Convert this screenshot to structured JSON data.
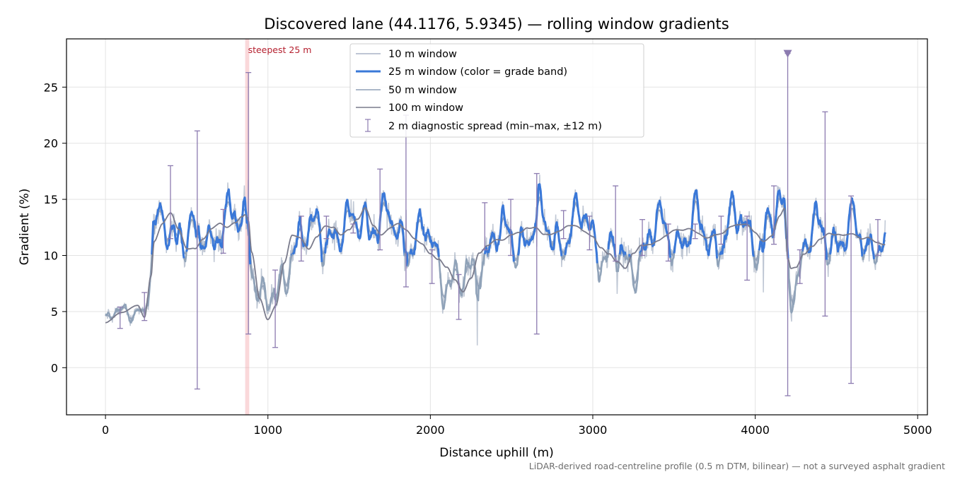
{
  "chart_data": {
    "type": "line",
    "title": "Discovered lane (44.1176, 5.9345) — rolling window gradients",
    "xlabel": "Distance uphill (m)",
    "ylabel": "Gradient (%)",
    "xlim": [
      -240,
      5060
    ],
    "ylim": [
      -4.2,
      29.3
    ],
    "xticks": [
      0,
      1000,
      2000,
      3000,
      4000,
      5000
    ],
    "yticks": [
      0,
      5,
      10,
      15,
      20,
      25
    ],
    "grid": true,
    "legend_position": "top-center",
    "footnote": "LiDAR-derived road-centreline profile (0.5 m DTM, bilinear) — not a surveyed asphalt gradient",
    "colors": {
      "w10": "#aab4c6",
      "w25": "#3a78d8",
      "w50": "#8f9fb6",
      "w100": "#7a7b8c",
      "spread": "#8c7bb0",
      "highlight": "#f4a9ad",
      "annotation": "#b5202f"
    },
    "highlight": {
      "x_start": 860,
      "x_end": 885,
      "label": "steepest 25 m"
    },
    "marker": {
      "x": 4200,
      "y": 28,
      "shape": "triangle-down"
    },
    "series": [
      {
        "key": "w10",
        "name": "10 m window"
      },
      {
        "key": "w25",
        "name": "25 m window (color = grade band)"
      },
      {
        "key": "w50",
        "name": "50 m window"
      },
      {
        "key": "w100",
        "name": "100 m window"
      },
      {
        "key": "spread",
        "name": "2 m diagnostic spread (min–max, ±12 m)"
      }
    ],
    "anchors": {
      "x": [
        0,
        100,
        200,
        240,
        280,
        300,
        350,
        400,
        450,
        500,
        550,
        600,
        650,
        700,
        750,
        800,
        840,
        860,
        880,
        900,
        950,
        1000,
        1050,
        1100,
        1150,
        1200,
        1250,
        1300,
        1350,
        1400,
        1450,
        1500,
        1550,
        1600,
        1650,
        1700,
        1750,
        1800,
        1850,
        1900,
        1950,
        2000,
        2050,
        2100,
        2150,
        2200,
        2250,
        2300,
        2350,
        2400,
        2450,
        2500,
        2550,
        2600,
        2650,
        2700,
        2750,
        2800,
        2850,
        2900,
        2950,
        3000,
        3050,
        3100,
        3150,
        3200,
        3250,
        3300,
        3350,
        3400,
        3450,
        3500,
        3550,
        3600,
        3650,
        3700,
        3750,
        3800,
        3850,
        3900,
        3950,
        4000,
        4050,
        4100,
        4150,
        4180,
        4200,
        4220,
        4250,
        4300,
        4350,
        4400,
        4450,
        4500,
        4550,
        4600,
        4650,
        4700,
        4750,
        4800
      ],
      "w100": [
        4.0,
        4.8,
        5.6,
        4.6,
        8.5,
        11.5,
        12.8,
        13.5,
        12.0,
        10.5,
        10.8,
        11.8,
        12.6,
        12.8,
        12.2,
        12.6,
        13.3,
        13.6,
        13.2,
        10.5,
        6.5,
        4.5,
        5.5,
        9.0,
        11.5,
        11.5,
        10.8,
        12.0,
        12.8,
        12.4,
        11.5,
        12.0,
        13.2,
        14.5,
        13.0,
        12.0,
        12.3,
        12.5,
        12.0,
        11.5,
        11.3,
        10.5,
        9.8,
        8.8,
        7.5,
        6.5,
        8.0,
        10.5,
        11.2,
        11.5,
        11.2,
        11.5,
        11.8,
        12.5,
        12.8,
        12.2,
        12.0,
        12.0,
        12.3,
        12.4,
        12.2,
        12.0,
        11.0,
        10.2,
        9.2,
        8.5,
        10.0,
        11.0,
        11.3,
        11.6,
        11.8,
        12.0,
        11.9,
        12.2,
        12.1,
        11.9,
        12.1,
        12.0,
        12.3,
        12.4,
        12.6,
        12.2,
        11.6,
        12.0,
        13.5,
        14.0,
        9.5,
        8.5,
        8.6,
        10.0,
        11.0,
        11.8,
        12.2,
        11.8,
        11.5,
        11.6,
        11.4,
        11.8,
        11.5,
        11.2
      ]
    },
    "spread_bars": [
      {
        "x": 90,
        "min": 3.5,
        "max": 5.4
      },
      {
        "x": 240,
        "min": 4.2,
        "max": 6.7
      },
      {
        "x": 400,
        "min": 11.5,
        "max": 18.0
      },
      {
        "x": 565,
        "min": -1.9,
        "max": 21.1
      },
      {
        "x": 725,
        "min": 10.2,
        "max": 14.1
      },
      {
        "x": 880,
        "min": 3.0,
        "max": 26.3
      },
      {
        "x": 1045,
        "min": 1.8,
        "max": 8.7
      },
      {
        "x": 1205,
        "min": 9.5,
        "max": 13.5
      },
      {
        "x": 1360,
        "min": 11.5,
        "max": 13.5
      },
      {
        "x": 1525,
        "min": 12.0,
        "max": 12.8
      },
      {
        "x": 1690,
        "min": 10.5,
        "max": 17.7
      },
      {
        "x": 1850,
        "min": 7.2,
        "max": 22.5
      },
      {
        "x": 2010,
        "min": 7.5,
        "max": 10.5
      },
      {
        "x": 2175,
        "min": 4.3,
        "max": 8.3
      },
      {
        "x": 2335,
        "min": 10.5,
        "max": 14.7
      },
      {
        "x": 2495,
        "min": 10.0,
        "max": 15.0
      },
      {
        "x": 2655,
        "min": 3.0,
        "max": 17.3
      },
      {
        "x": 2820,
        "min": 11.5,
        "max": 14.0
      },
      {
        "x": 2980,
        "min": 10.5,
        "max": 13.5
      },
      {
        "x": 3140,
        "min": 9.5,
        "max": 16.2
      },
      {
        "x": 3305,
        "min": 10.0,
        "max": 13.2
      },
      {
        "x": 3465,
        "min": 9.5,
        "max": 12.8
      },
      {
        "x": 3630,
        "min": 11.5,
        "max": 12.8
      },
      {
        "x": 3790,
        "min": 11.0,
        "max": 13.5
      },
      {
        "x": 3950,
        "min": 7.8,
        "max": 13.5
      },
      {
        "x": 4115,
        "min": 11.0,
        "max": 16.2
      },
      {
        "x": 4200,
        "min": -2.5,
        "max": 28.0
      },
      {
        "x": 4275,
        "min": 7.5,
        "max": 10.5
      },
      {
        "x": 4430,
        "min": 4.6,
        "max": 22.8
      },
      {
        "x": 4590,
        "min": -1.4,
        "max": 15.3
      },
      {
        "x": 4755,
        "min": 10.0,
        "max": 13.2
      }
    ]
  }
}
